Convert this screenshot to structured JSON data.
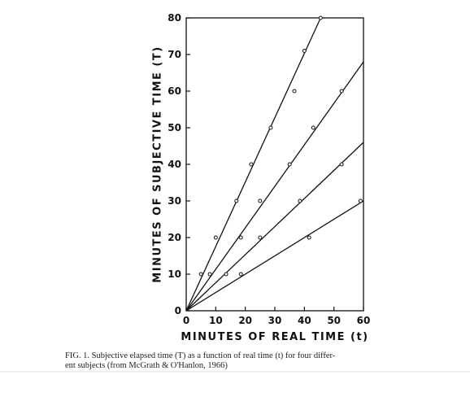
{
  "chart_data": {
    "type": "scatter",
    "x_label": "MINUTES OF REAL TIME (t)",
    "y_label": "MINUTES OF SUBJECTIVE TIME (T)",
    "xlim": [
      0,
      60
    ],
    "xticks": [
      0,
      10,
      20,
      30,
      40,
      50,
      60
    ],
    "ylim": [
      0,
      80
    ],
    "yticks": [
      0,
      10,
      20,
      30,
      40,
      50,
      60,
      70,
      80
    ],
    "color": "#111",
    "series": [
      {
        "x": [
          5,
          8,
          10,
          17,
          22,
          28.6,
          36.6,
          40,
          45.5,
          13.5,
          18.5,
          25,
          35,
          43,
          52.6,
          18.5,
          25,
          38.5,
          52.6,
          41.6,
          59
        ],
        "values": [
          10,
          10,
          20,
          30,
          40,
          50,
          60,
          71,
          80,
          10,
          20,
          30,
          40,
          50,
          60,
          10,
          20,
          30,
          40,
          20,
          30
        ]
      }
    ],
    "lines": [
      {
        "x": [
          0,
          45.5
        ],
        "values": [
          0,
          80
        ]
      },
      {
        "x": [
          0,
          60
        ],
        "values": [
          0,
          68
        ]
      },
      {
        "x": [
          0,
          60
        ],
        "values": [
          0,
          46
        ]
      },
      {
        "x": [
          0,
          60
        ],
        "values": [
          0,
          30
        ]
      }
    ],
    "caption": [
      "FIG. 1.  Subjective elapsed time (T) as a function of real time (t) for four differ-",
      "ent subjects (from McGrath & O'Hanlon, 1966)"
    ]
  }
}
